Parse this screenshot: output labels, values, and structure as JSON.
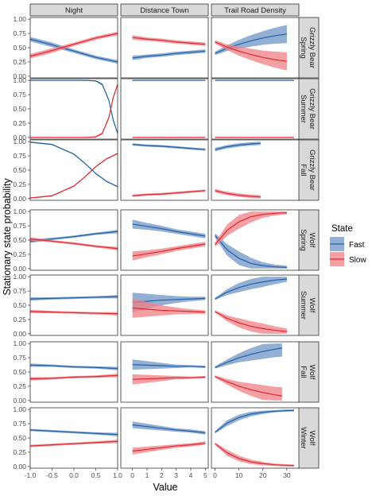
{
  "figure": {
    "ylabel": "Stationary state probability",
    "xlabel": "Value"
  },
  "legend": {
    "title": "State",
    "items": [
      {
        "label": "Fast",
        "color": "#1f5fa6",
        "fill": "#6f95c6"
      },
      {
        "label": "Slow",
        "color": "#e3262e",
        "fill": "#ef7f84"
      }
    ]
  },
  "chart_data": {
    "type": "line",
    "facet_columns": [
      {
        "label": "Night",
        "xlim": [
          -1.0,
          1.0
        ],
        "ticks": [
          "-1.0",
          "-0.5",
          "0.0",
          "0.5",
          "1.0"
        ]
      },
      {
        "label": "Distance Town",
        "xlim": [
          -0.8,
          5.2
        ],
        "ticks": [
          "0",
          "1",
          "2",
          "3",
          "4",
          "5"
        ]
      },
      {
        "label": "Trail Road Density",
        "xlim": [
          -1.5,
          35.0
        ],
        "ticks": [
          "0",
          "10",
          "20",
          "30"
        ]
      }
    ],
    "facet_rows": [
      {
        "label": "Grizzly Bear Spring",
        "lines": [
          "Grizzly Bear",
          "Spring"
        ]
      },
      {
        "label": "Grizzly Bear Summer",
        "lines": [
          "Grizzly Bear",
          "Summer"
        ]
      },
      {
        "label": "Grizzly Bear Fall",
        "lines": [
          "Grizzly Bear",
          "Fall"
        ]
      },
      {
        "label": "Wolf Spring",
        "lines": [
          "Wolf",
          "Spring"
        ]
      },
      {
        "label": "Wolf Summer",
        "lines": [
          "Wolf",
          "Summer"
        ]
      },
      {
        "label": "Wolf Fall",
        "lines": [
          "Wolf",
          "Fall"
        ]
      },
      {
        "label": "Wolf Winter",
        "lines": [
          "Wolf",
          "Winter"
        ]
      }
    ],
    "ylim": [
      -0.03,
      1.03
    ],
    "yticks": [
      "0.00",
      "0.25",
      "0.50",
      "0.75",
      "1.00"
    ],
    "panels": [
      [
        {
          "x": [
            -1,
            -0.5,
            0,
            0.5,
            1
          ],
          "fast": [
            0.65,
            0.55,
            0.44,
            0.33,
            0.25
          ],
          "fast_ci": [
            0.04,
            0.04,
            0.03,
            0.03,
            0.03
          ],
          "slow": [
            0.35,
            0.45,
            0.56,
            0.67,
            0.75
          ],
          "slow_ci": [
            0.04,
            0.04,
            0.03,
            0.03,
            0.03
          ]
        },
        {
          "x": [
            0,
            1,
            2,
            3,
            4,
            5
          ],
          "fast": [
            0.32,
            0.35,
            0.37,
            0.4,
            0.42,
            0.44
          ],
          "fast_ci": [
            0.04,
            0.03,
            0.03,
            0.03,
            0.03,
            0.03
          ],
          "slow": [
            0.68,
            0.65,
            0.63,
            0.6,
            0.58,
            0.56
          ],
          "slow_ci": [
            0.04,
            0.03,
            0.03,
            0.03,
            0.03,
            0.03
          ]
        },
        {
          "x": [
            0,
            5,
            10,
            15,
            20,
            25,
            30
          ],
          "fast": [
            0.4,
            0.49,
            0.56,
            0.62,
            0.67,
            0.71,
            0.74
          ],
          "fast_ci": [
            0.03,
            0.05,
            0.08,
            0.1,
            0.12,
            0.14,
            0.16
          ],
          "slow": [
            0.6,
            0.51,
            0.44,
            0.38,
            0.33,
            0.29,
            0.26
          ],
          "slow_ci": [
            0.03,
            0.05,
            0.08,
            0.1,
            0.12,
            0.14,
            0.16
          ]
        }
      ],
      [
        {
          "x": [
            -1,
            -0.5,
            0,
            0.3,
            0.5,
            0.65,
            0.8,
            0.9,
            1
          ],
          "fast": [
            1.0,
            1.0,
            1.0,
            1.0,
            0.99,
            0.93,
            0.65,
            0.3,
            0.07
          ],
          "fast_ci": [
            0,
            0,
            0,
            0,
            0.01,
            0.02,
            0.02,
            0.02,
            0.01
          ],
          "slow": [
            0.0,
            0.0,
            0.0,
            0.0,
            0.01,
            0.07,
            0.35,
            0.7,
            0.93
          ],
          "slow_ci": [
            0,
            0,
            0,
            0,
            0.01,
            0.02,
            0.02,
            0.02,
            0.01
          ]
        },
        {
          "x": [
            0,
            5
          ],
          "fast": [
            1.0,
            1.0
          ],
          "fast_ci": [
            0,
            0
          ],
          "slow": [
            0.0,
            0.0
          ],
          "slow_ci": [
            0,
            0
          ]
        },
        {
          "x": [
            0,
            33
          ],
          "fast": [
            1.0,
            1.0
          ],
          "fast_ci": [
            0,
            0
          ],
          "slow": [
            0.0,
            0.0
          ],
          "slow_ci": [
            0,
            0
          ]
        }
      ],
      [
        {
          "x": [
            -1,
            -0.5,
            0,
            0.25,
            0.5,
            0.75,
            1
          ],
          "fast": [
            0.99,
            0.95,
            0.78,
            0.62,
            0.44,
            0.3,
            0.21
          ],
          "fast_ci": [
            0.01,
            0.01,
            0.01,
            0.01,
            0.01,
            0.01,
            0.01
          ],
          "slow": [
            0.01,
            0.05,
            0.22,
            0.38,
            0.56,
            0.7,
            0.79
          ],
          "slow_ci": [
            0.01,
            0.01,
            0.01,
            0.01,
            0.01,
            0.01,
            0.01
          ]
        },
        {
          "x": [
            0,
            1,
            2,
            3,
            4,
            5
          ],
          "fast": [
            0.95,
            0.93,
            0.92,
            0.9,
            0.88,
            0.86
          ],
          "fast_ci": [
            0.02,
            0.02,
            0.02,
            0.02,
            0.02,
            0.02
          ],
          "slow": [
            0.05,
            0.07,
            0.08,
            0.1,
            0.12,
            0.14
          ],
          "slow_ci": [
            0.02,
            0.02,
            0.02,
            0.02,
            0.02,
            0.02
          ]
        },
        {
          "x": [
            0,
            5,
            10,
            15,
            19
          ],
          "fast": [
            0.86,
            0.91,
            0.94,
            0.96,
            0.97
          ],
          "fast_ci": [
            0.03,
            0.03,
            0.03,
            0.03,
            0.03
          ],
          "slow": [
            0.14,
            0.09,
            0.06,
            0.04,
            0.03
          ],
          "slow_ci": [
            0.03,
            0.03,
            0.03,
            0.03,
            0.03
          ]
        }
      ],
      [
        {
          "x": [
            -1,
            -0.5,
            0,
            0.5,
            1
          ],
          "fast": [
            0.48,
            0.52,
            0.56,
            0.61,
            0.65
          ],
          "fast_ci": [
            0.03,
            0.02,
            0.02,
            0.02,
            0.03
          ],
          "slow": [
            0.52,
            0.48,
            0.44,
            0.39,
            0.35
          ],
          "slow_ci": [
            0.03,
            0.02,
            0.02,
            0.02,
            0.03
          ]
        },
        {
          "x": [
            0,
            1,
            2,
            3,
            4,
            5
          ],
          "fast": [
            0.78,
            0.74,
            0.7,
            0.65,
            0.61,
            0.57
          ],
          "fast_ci": [
            0.08,
            0.06,
            0.05,
            0.04,
            0.04,
            0.04
          ],
          "slow": [
            0.22,
            0.26,
            0.3,
            0.35,
            0.39,
            0.43
          ],
          "slow_ci": [
            0.08,
            0.06,
            0.05,
            0.04,
            0.04,
            0.04
          ]
        },
        {
          "x": [
            0,
            5,
            10,
            15,
            20,
            25,
            30
          ],
          "fast": [
            0.58,
            0.33,
            0.18,
            0.09,
            0.05,
            0.03,
            0.02
          ],
          "fast_ci": [
            0.04,
            0.1,
            0.12,
            0.1,
            0.06,
            0.04,
            0.03
          ],
          "slow": [
            0.42,
            0.67,
            0.82,
            0.91,
            0.95,
            0.97,
            0.98
          ],
          "slow_ci": [
            0.04,
            0.1,
            0.12,
            0.1,
            0.06,
            0.04,
            0.03
          ]
        }
      ],
      [
        {
          "x": [
            -1,
            -0.5,
            0,
            0.5,
            1
          ],
          "fast": [
            0.61,
            0.62,
            0.63,
            0.64,
            0.65
          ],
          "fast_ci": [
            0.03,
            0.02,
            0.02,
            0.02,
            0.03
          ],
          "slow": [
            0.39,
            0.38,
            0.37,
            0.36,
            0.35
          ],
          "slow_ci": [
            0.03,
            0.02,
            0.02,
            0.02,
            0.03
          ]
        },
        {
          "x": [
            0,
            1,
            2,
            3,
            4,
            5
          ],
          "fast": [
            0.55,
            0.57,
            0.59,
            0.6,
            0.61,
            0.62
          ],
          "fast_ci": [
            0.17,
            0.13,
            0.09,
            0.06,
            0.04,
            0.03
          ],
          "slow": [
            0.45,
            0.43,
            0.41,
            0.4,
            0.39,
            0.38
          ],
          "slow_ci": [
            0.17,
            0.13,
            0.09,
            0.06,
            0.04,
            0.03
          ]
        },
        {
          "x": [
            0,
            5,
            10,
            15,
            20,
            25,
            30
          ],
          "fast": [
            0.61,
            0.73,
            0.81,
            0.87,
            0.91,
            0.94,
            0.96
          ],
          "fast_ci": [
            0.02,
            0.05,
            0.08,
            0.09,
            0.09,
            0.07,
            0.05
          ],
          "slow": [
            0.39,
            0.27,
            0.19,
            0.13,
            0.09,
            0.06,
            0.04
          ],
          "slow_ci": [
            0.02,
            0.05,
            0.08,
            0.09,
            0.09,
            0.07,
            0.05
          ]
        }
      ],
      [
        {
          "x": [
            -1,
            -0.5,
            0,
            0.5,
            1
          ],
          "fast": [
            0.62,
            0.61,
            0.59,
            0.58,
            0.56
          ],
          "fast_ci": [
            0.03,
            0.02,
            0.02,
            0.02,
            0.03
          ],
          "slow": [
            0.38,
            0.39,
            0.41,
            0.42,
            0.44
          ],
          "slow_ci": [
            0.03,
            0.02,
            0.02,
            0.02,
            0.03
          ]
        },
        {
          "x": [
            0,
            1,
            2,
            3,
            4,
            5
          ],
          "fast": [
            0.63,
            0.62,
            0.61,
            0.6,
            0.6,
            0.59
          ],
          "fast_ci": [
            0.09,
            0.07,
            0.05,
            0.03,
            0.02,
            0.02
          ],
          "slow": [
            0.37,
            0.38,
            0.39,
            0.4,
            0.4,
            0.41
          ],
          "slow_ci": [
            0.09,
            0.07,
            0.05,
            0.03,
            0.02,
            0.02
          ]
        },
        {
          "x": [
            0,
            5,
            10,
            15,
            20,
            25,
            28
          ],
          "fast": [
            0.58,
            0.67,
            0.75,
            0.81,
            0.86,
            0.9,
            0.92
          ],
          "fast_ci": [
            0.02,
            0.05,
            0.08,
            0.11,
            0.13,
            0.14,
            0.15
          ],
          "slow": [
            0.42,
            0.33,
            0.25,
            0.19,
            0.14,
            0.1,
            0.08
          ],
          "slow_ci": [
            0.02,
            0.05,
            0.08,
            0.11,
            0.13,
            0.14,
            0.15
          ]
        }
      ],
      [
        {
          "x": [
            -1,
            -0.5,
            0,
            0.5,
            1
          ],
          "fast": [
            0.64,
            0.62,
            0.6,
            0.58,
            0.56
          ],
          "fast_ci": [
            0.02,
            0.02,
            0.02,
            0.02,
            0.03
          ],
          "slow": [
            0.36,
            0.38,
            0.4,
            0.42,
            0.44
          ],
          "slow_ci": [
            0.02,
            0.02,
            0.02,
            0.02,
            0.03
          ]
        },
        {
          "x": [
            0,
            1,
            2,
            3,
            4,
            5
          ],
          "fast": [
            0.73,
            0.7,
            0.67,
            0.64,
            0.62,
            0.59
          ],
          "fast_ci": [
            0.06,
            0.05,
            0.04,
            0.03,
            0.03,
            0.03
          ],
          "slow": [
            0.27,
            0.3,
            0.33,
            0.36,
            0.38,
            0.41
          ],
          "slow_ci": [
            0.06,
            0.05,
            0.04,
            0.03,
            0.03,
            0.03
          ]
        },
        {
          "x": [
            0,
            5,
            10,
            15,
            20,
            25,
            30,
            33
          ],
          "fast": [
            0.6,
            0.76,
            0.86,
            0.92,
            0.95,
            0.97,
            0.98,
            0.985
          ],
          "fast_ci": [
            0.02,
            0.05,
            0.05,
            0.04,
            0.03,
            0.02,
            0.02,
            0.02
          ],
          "slow": [
            0.4,
            0.24,
            0.14,
            0.08,
            0.05,
            0.03,
            0.02,
            0.015
          ],
          "slow_ci": [
            0.02,
            0.05,
            0.05,
            0.04,
            0.03,
            0.02,
            0.02,
            0.02
          ]
        }
      ]
    ]
  }
}
